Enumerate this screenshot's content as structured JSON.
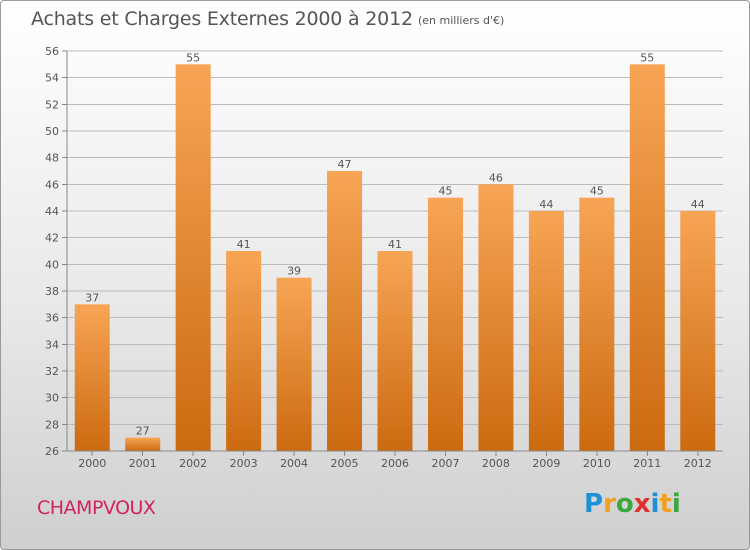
{
  "header": {
    "title": "Achats et Charges Externes 2000 à 2012",
    "subtitle": "(en milliers d'€)"
  },
  "footer": {
    "commune": "CHAMPVOUX",
    "logo_letters": [
      {
        "char": "P",
        "color": "#1f8fd8"
      },
      {
        "char": "r",
        "color": "#f0a020"
      },
      {
        "char": "o",
        "color": "#3aa83a"
      },
      {
        "char": "x",
        "color": "#e23030"
      },
      {
        "char": "i",
        "color": "#1f8fd8"
      },
      {
        "char": "t",
        "color": "#f0a020"
      },
      {
        "char": "i",
        "color": "#3aa83a"
      }
    ]
  },
  "colors": {
    "bar_light": "#f7a555",
    "bar_dark": "#cc6a10",
    "grid": "#bbbbbb",
    "text": "#555555"
  },
  "chart_data": {
    "type": "bar",
    "categories": [
      "2000",
      "2001",
      "2002",
      "2003",
      "2004",
      "2005",
      "2006",
      "2007",
      "2008",
      "2009",
      "2010",
      "2011",
      "2012"
    ],
    "values": [
      37,
      27,
      55,
      41,
      39,
      47,
      41,
      45,
      46,
      44,
      45,
      55,
      44
    ],
    "ylim": [
      26,
      56
    ],
    "yticks": [
      26,
      28,
      30,
      32,
      34,
      36,
      38,
      40,
      42,
      44,
      46,
      48,
      50,
      52,
      54,
      56
    ],
    "grid": true,
    "data_labels": true
  }
}
